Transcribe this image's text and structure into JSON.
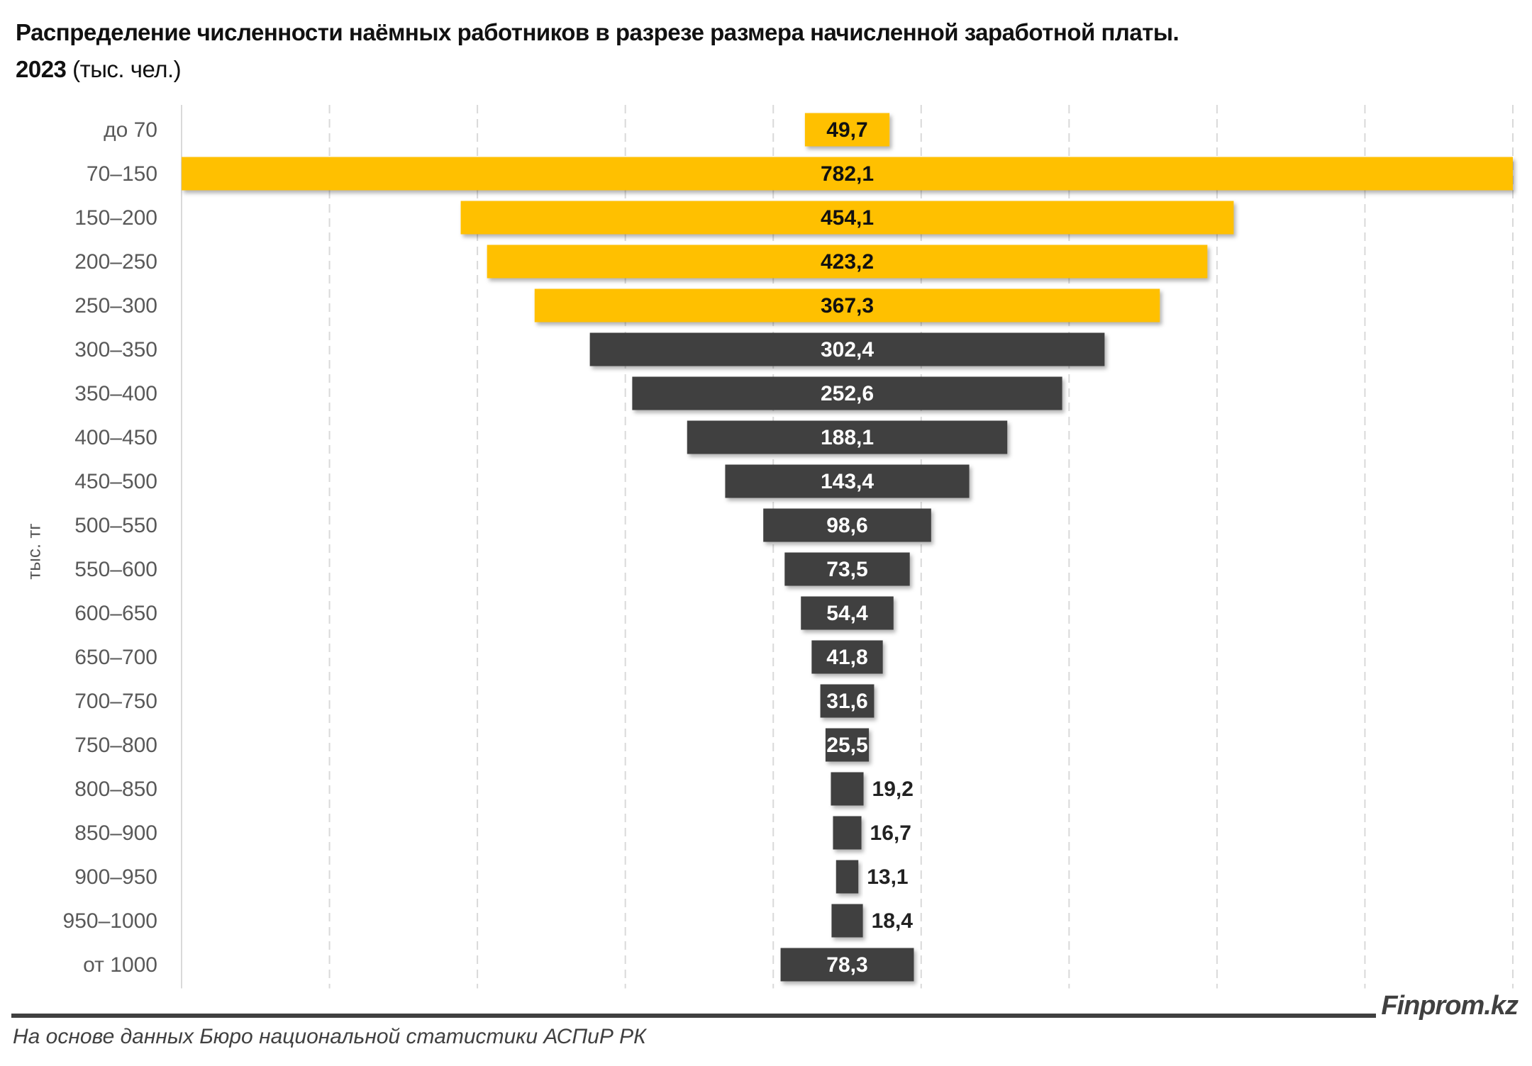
{
  "title": {
    "main": "Распределение численности наёмных работников в разрезе размера начисленной заработной платы.",
    "year": "2023",
    "unit": "(тыс. чел.)"
  },
  "chart_data": {
    "type": "bar",
    "orientation": "horizontal-funnel",
    "title": "Распределение численности наёмных работников в разрезе размера начисленной заработной платы. 2023 (тыс. чел.)",
    "ylabel": "тыс. тг",
    "xlabel": "",
    "categories": [
      "до 70",
      "70–150",
      "150–200",
      "200–250",
      "250–300",
      "300–350",
      "350–400",
      "400–450",
      "450–500",
      "500–550",
      "550–600",
      "600–650",
      "650–700",
      "700–750",
      "750–800",
      "800–850",
      "850–900",
      "900–950",
      "950–1000",
      "от 1000"
    ],
    "values": [
      49.7,
      782.1,
      454.1,
      423.2,
      367.3,
      302.4,
      252.6,
      188.1,
      143.4,
      98.6,
      73.5,
      54.4,
      41.8,
      31.6,
      25.5,
      19.2,
      16.7,
      13.1,
      18.4,
      78.3
    ],
    "labels": [
      "49,7",
      "782,1",
      "454,1",
      "423,2",
      "367,3",
      "302,4",
      "252,6",
      "188,1",
      "143,4",
      "98,6",
      "73,5",
      "54,4",
      "41,8",
      "31,6",
      "25,5",
      "19,2",
      "16,7",
      "13,1",
      "18,4",
      "78,3"
    ],
    "highlight_count": 5,
    "colors": {
      "highlight": "#FFC000",
      "default": "#404040",
      "grid": "#D9D9D9"
    },
    "grid": true,
    "legend": "none"
  },
  "footer": {
    "brand": "Finprom.kz",
    "source": "На основе данных Бюро национальной статистики АСПиР РК"
  }
}
